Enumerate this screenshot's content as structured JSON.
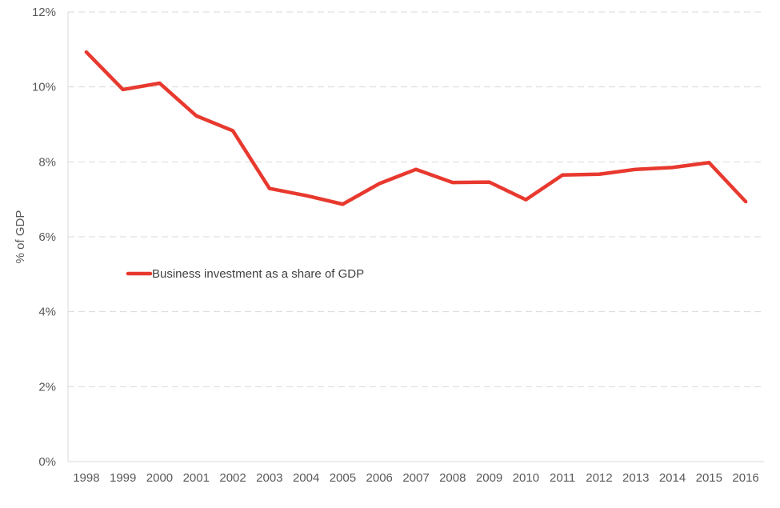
{
  "chart_data": {
    "type": "line",
    "title": "",
    "xlabel": "",
    "ylabel": "% of GDP",
    "ylim": [
      0,
      12
    ],
    "y_ticks": [
      "0%",
      "2%",
      "4%",
      "6%",
      "8%",
      "10%",
      "12%"
    ],
    "y_tick_values": [
      0,
      2,
      4,
      6,
      8,
      10,
      12
    ],
    "grid": true,
    "legend_position": "left-middle",
    "categories": [
      "1998",
      "1999",
      "2000",
      "2001",
      "2002",
      "2003",
      "2004",
      "2005",
      "2006",
      "2007",
      "2008",
      "2009",
      "2010",
      "2011",
      "2012",
      "2013",
      "2014",
      "2015",
      "2016"
    ],
    "series": [
      {
        "name": "Business investment as a share of GDP",
        "color": "#e8392f",
        "values": [
          10.93,
          9.93,
          10.1,
          9.23,
          8.83,
          7.29,
          7.1,
          6.87,
          7.42,
          7.8,
          7.45,
          7.46,
          6.99,
          7.65,
          7.67,
          7.8,
          7.85,
          7.98,
          6.94
        ]
      }
    ]
  }
}
